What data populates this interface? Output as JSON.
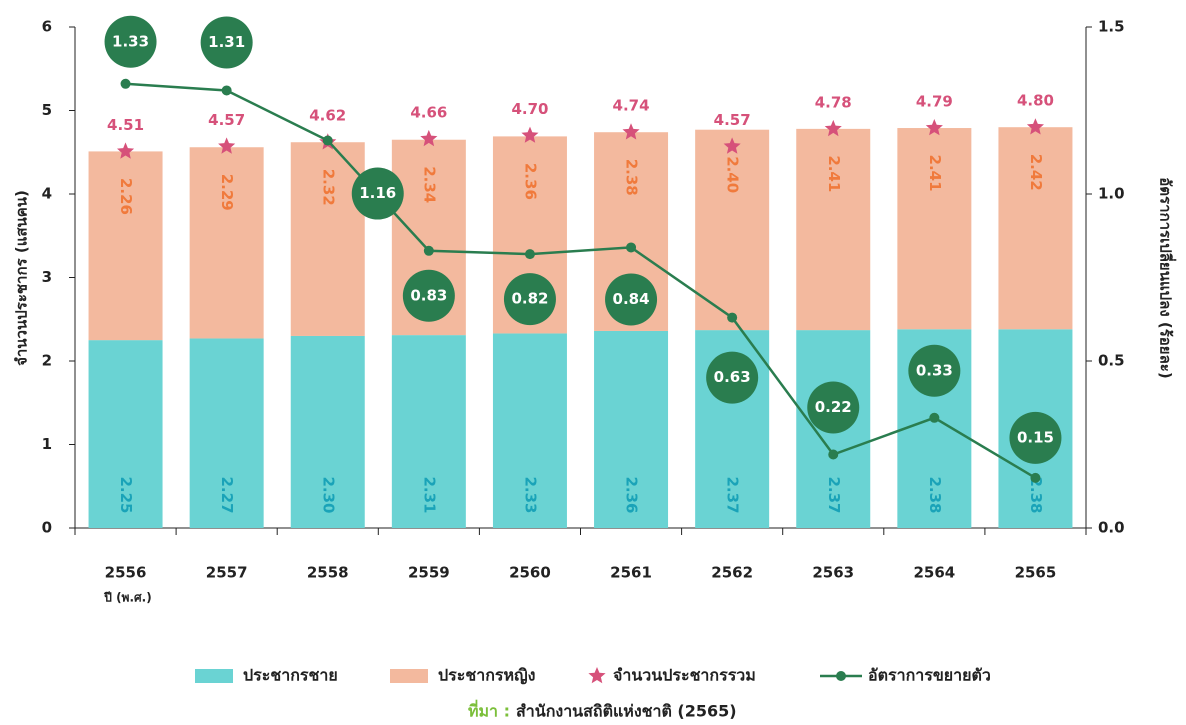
{
  "chart_data": {
    "type": "bar_line",
    "y_label": "จำนวนประชากร (แสนคน)",
    "y2_label": "อัตราการเปลี่ยนแปลง (ร้อยละ)",
    "x_label": "ปี (พ.ศ.)",
    "categories": [
      "2556",
      "2557",
      "2558",
      "2559",
      "2560",
      "2561",
      "2562",
      "2563",
      "2564",
      "2565"
    ],
    "series": [
      {
        "name": "ประชากรชาย",
        "type": "bar",
        "color": "#6ad3d3",
        "label_color": "#1aa3b8",
        "values": [
          2.25,
          2.27,
          2.3,
          2.31,
          2.33,
          2.36,
          2.37,
          2.37,
          2.38,
          2.38
        ],
        "value_labels": [
          "2.25",
          "2.27",
          "2.30",
          "2.31",
          "2.33",
          "2.36",
          "2.37",
          "2.37",
          "2.38",
          "2.38"
        ]
      },
      {
        "name": "ประชากรหญิง",
        "type": "bar",
        "color": "#f3b99e",
        "label_color": "#f07a3c",
        "values": [
          2.26,
          2.29,
          2.32,
          2.34,
          2.36,
          2.38,
          2.4,
          2.41,
          2.41,
          2.42
        ],
        "value_labels": [
          "2.26",
          "2.29",
          "2.32",
          "2.34",
          "2.36",
          "2.38",
          "2.40",
          "2.41",
          "2.41",
          "2.42"
        ]
      },
      {
        "name": "จำนวนประชากรรวม",
        "type": "star",
        "color": "#d6517a",
        "values": [
          4.51,
          4.57,
          4.62,
          4.66,
          4.7,
          4.74,
          4.57,
          4.78,
          4.79,
          4.8
        ],
        "value_labels": [
          "4.51",
          "4.57",
          "4.62",
          "4.66",
          "4.70",
          "4.74",
          "4.57",
          "4.78",
          "4.79",
          "4.80"
        ]
      },
      {
        "name": "อัตราการขยายตัว",
        "type": "line",
        "axis": "y2",
        "color": "#2a7d4f",
        "values": [
          1.33,
          1.31,
          1.16,
          0.83,
          0.82,
          0.84,
          0.63,
          0.22,
          0.33,
          0.15
        ]
      }
    ],
    "ylim": [
      0,
      6
    ],
    "yticks": [
      0,
      1,
      2,
      3,
      4,
      5,
      6
    ],
    "y2lim": [
      0,
      1.5
    ],
    "y2ticks": [
      {
        "value": 0,
        "label": "0.0"
      },
      0.5,
      {
        "value": 1,
        "label": "1.0"
      },
      1.5
    ],
    "source_label": "ที่มา :",
    "source": "สำนักงานสถิติแห่งชาติ (2565)"
  }
}
